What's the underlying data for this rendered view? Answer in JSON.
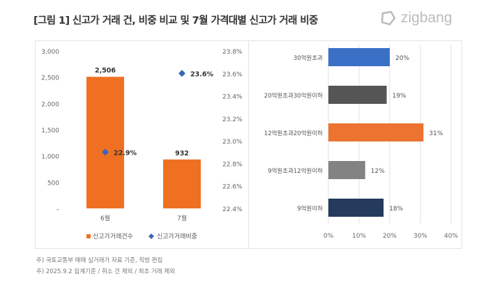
{
  "title": "[그림 1] 신고가 거래 건, 비중 비교 및 7월 가격대별 신고가 거래 비중",
  "logo": "zigbang",
  "footnotes": [
    "주) 국토교통부 매매 실거래가 자료 기준, 직방 편집",
    "주) 2025.9.2 집계기준 / 취소 건 제외 / 최초 거래 제외"
  ],
  "chart_data": [
    {
      "type": "bar+scatter",
      "categories": [
        "6월",
        "7월"
      ],
      "series": [
        {
          "name": "신고가거래건수",
          "type": "bar",
          "color": "#f07022",
          "values": [
            2506,
            932
          ],
          "labels": [
            "2,506",
            "932"
          ]
        },
        {
          "name": "신고가거래비중",
          "type": "scatter",
          "axis": "right",
          "color": "#3a67b8",
          "values": [
            22.9,
            23.6
          ],
          "labels": [
            "22.9%",
            "23.6%"
          ]
        }
      ],
      "y_left": {
        "range": [
          0,
          3000
        ],
        "ticks": [
          "–",
          "500",
          "1,000",
          "1,500",
          "2,000",
          "2,500",
          "3,000"
        ]
      },
      "y_right": {
        "range": [
          22.4,
          23.8
        ],
        "ticks": [
          "22.4%",
          "22.6%",
          "22.8%",
          "23.0%",
          "23.2%",
          "23.4%",
          "23.6%",
          "23.8%"
        ]
      },
      "legend_placement": "bottom"
    },
    {
      "type": "bar",
      "orientation": "horizontal",
      "categories": [
        "30억원초과",
        "20억원초과30억원이하",
        "12억원초과20억원이하",
        "9억원초과12억원이하",
        "9억원이하"
      ],
      "values": [
        20,
        19,
        31,
        12,
        18
      ],
      "labels": [
        "20%",
        "19%",
        "31%",
        "12%",
        "18%"
      ],
      "colors": [
        "#3a70c6",
        "#555555",
        "#ec7330",
        "#838383",
        "#243b5e"
      ],
      "xlim": [
        0,
        40
      ],
      "xticks": [
        "0%",
        "10%",
        "20%",
        "30%",
        "40%"
      ],
      "grid": true
    }
  ]
}
